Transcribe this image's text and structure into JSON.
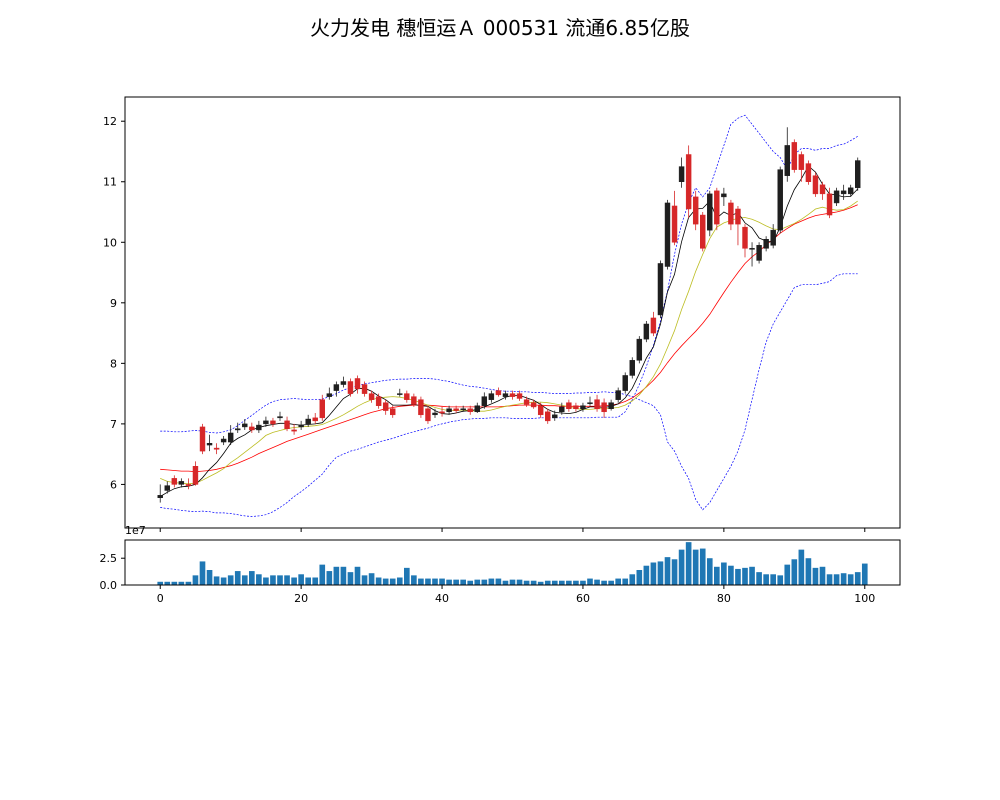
{
  "chart_data": [
    {
      "type": "candlestick",
      "title": "火力发电  穗恒运Ａ  000531  流通6.85亿股",
      "xlim": [
        -5,
        105
      ],
      "ylim": [
        5.28,
        12.4
      ],
      "yticks": [
        6,
        7,
        8,
        9,
        10,
        11,
        12
      ],
      "grid": false,
      "legend": "none",
      "colors": {
        "up": "#d62728",
        "down": "#1f1f1f",
        "ma5": "#000000",
        "ma10": "#bcbd22",
        "ma20": "#ff0000",
        "boll": "#0000ff"
      },
      "open": [
        5.78,
        5.9,
        6.1,
        6.0,
        6.0,
        6.3,
        6.95,
        6.65,
        6.6,
        6.7,
        6.7,
        6.9,
        6.95,
        6.95,
        6.9,
        7.0,
        7.05,
        7.1,
        7.05,
        6.9,
        6.95,
        7.0,
        7.1,
        7.4,
        7.45,
        7.55,
        7.65,
        7.7,
        7.75,
        7.65,
        7.5,
        7.45,
        7.35,
        7.25,
        7.5,
        7.5,
        7.45,
        7.4,
        7.25,
        7.15,
        7.2,
        7.2,
        7.25,
        7.25,
        7.25,
        7.2,
        7.3,
        7.4,
        7.55,
        7.45,
        7.5,
        7.5,
        7.4,
        7.35,
        7.3,
        7.2,
        7.1,
        7.2,
        7.35,
        7.3,
        7.25,
        7.35,
        7.4,
        7.35,
        7.25,
        7.4,
        7.55,
        7.8,
        8.05,
        8.4,
        8.75,
        8.8,
        9.6,
        10.6,
        11.0,
        11.45,
        10.75,
        10.45,
        10.2,
        10.85,
        10.75,
        10.65,
        10.55,
        10.25,
        9.9,
        9.7,
        9.9,
        9.95,
        10.2,
        11.1,
        11.65,
        11.45,
        11.3,
        11.1,
        10.95,
        10.8,
        10.65,
        10.8,
        10.8,
        10.9
      ],
      "close": [
        5.82,
        5.98,
        6.0,
        6.05,
        5.98,
        6.0,
        6.55,
        6.68,
        6.58,
        6.75,
        6.85,
        6.92,
        7.0,
        6.9,
        6.98,
        7.05,
        7.0,
        7.12,
        6.92,
        6.88,
        6.98,
        7.08,
        7.05,
        7.1,
        7.5,
        7.65,
        7.7,
        7.5,
        7.58,
        7.5,
        7.4,
        7.3,
        7.22,
        7.15,
        7.5,
        7.4,
        7.32,
        7.15,
        7.05,
        7.18,
        7.18,
        7.25,
        7.22,
        7.25,
        7.2,
        7.3,
        7.45,
        7.5,
        7.48,
        7.5,
        7.45,
        7.42,
        7.32,
        7.28,
        7.15,
        7.05,
        7.15,
        7.28,
        7.25,
        7.25,
        7.3,
        7.35,
        7.25,
        7.2,
        7.35,
        7.55,
        7.8,
        8.05,
        8.4,
        8.65,
        8.5,
        9.65,
        10.65,
        10.0,
        11.25,
        10.55,
        10.3,
        9.9,
        10.8,
        10.3,
        10.8,
        10.3,
        10.3,
        9.9,
        9.9,
        9.95,
        10.05,
        10.2,
        11.2,
        11.6,
        11.2,
        11.2,
        11.0,
        10.8,
        10.8,
        10.45,
        10.85,
        10.85,
        10.9,
        11.35
      ],
      "high": [
        6.0,
        6.05,
        6.15,
        6.1,
        6.1,
        6.38,
        7.0,
        6.82,
        6.68,
        6.8,
        6.98,
        7.02,
        7.08,
        7.02,
        7.05,
        7.12,
        7.1,
        7.2,
        7.12,
        7.0,
        7.05,
        7.15,
        7.18,
        7.48,
        7.6,
        7.7,
        7.78,
        7.75,
        7.8,
        7.7,
        7.55,
        7.5,
        7.4,
        7.3,
        7.58,
        7.55,
        7.5,
        7.45,
        7.3,
        7.25,
        7.28,
        7.3,
        7.3,
        7.3,
        7.3,
        7.35,
        7.52,
        7.55,
        7.6,
        7.55,
        7.55,
        7.55,
        7.45,
        7.4,
        7.35,
        7.25,
        7.22,
        7.35,
        7.4,
        7.35,
        7.35,
        7.45,
        7.48,
        7.42,
        7.4,
        7.6,
        7.85,
        8.1,
        8.45,
        8.7,
        8.85,
        9.7,
        10.7,
        10.85,
        11.4,
        11.6,
        10.85,
        10.5,
        10.85,
        10.9,
        10.9,
        10.7,
        10.6,
        10.3,
        10.0,
        10.0,
        10.1,
        10.3,
        11.25,
        11.9,
        11.7,
        11.5,
        11.35,
        11.15,
        11.0,
        10.9,
        10.9,
        10.95,
        10.95,
        11.4
      ],
      "low": [
        5.7,
        5.85,
        5.95,
        5.95,
        5.92,
        5.98,
        6.5,
        6.55,
        6.5,
        6.65,
        6.65,
        6.85,
        6.9,
        6.85,
        6.85,
        6.95,
        6.95,
        7.05,
        6.88,
        6.82,
        6.9,
        6.95,
        7.0,
        7.05,
        7.4,
        7.45,
        7.6,
        7.45,
        7.5,
        7.45,
        7.35,
        7.25,
        7.15,
        7.1,
        7.45,
        7.35,
        7.28,
        7.1,
        7.0,
        7.1,
        7.12,
        7.15,
        7.18,
        7.2,
        7.15,
        7.18,
        7.25,
        7.35,
        7.45,
        7.4,
        7.4,
        7.38,
        7.28,
        7.25,
        7.1,
        7.0,
        7.05,
        7.15,
        7.2,
        7.2,
        7.2,
        7.3,
        7.2,
        7.1,
        7.22,
        7.35,
        7.5,
        7.75,
        8.0,
        8.35,
        8.45,
        8.75,
        9.55,
        9.95,
        10.9,
        10.4,
        10.2,
        9.85,
        10.1,
        10.2,
        10.6,
        10.2,
        9.95,
        9.75,
        9.6,
        9.65,
        9.85,
        9.9,
        10.15,
        11.0,
        11.15,
        11.0,
        10.95,
        10.75,
        10.7,
        10.4,
        10.6,
        10.7,
        10.75,
        10.85
      ],
      "ma5": [
        5.8,
        5.87,
        5.93,
        5.96,
        5.97,
        6.0,
        6.11,
        6.25,
        6.36,
        6.51,
        6.68,
        6.76,
        6.82,
        6.9,
        6.94,
        6.97,
        6.99,
        7.01,
        7.01,
        6.99,
        6.98,
        6.99,
        7.0,
        7.02,
        7.14,
        7.28,
        7.42,
        7.49,
        7.58,
        7.59,
        7.54,
        7.46,
        7.4,
        7.31,
        7.31,
        7.31,
        7.32,
        7.3,
        7.29,
        7.22,
        7.17,
        7.16,
        7.18,
        7.21,
        7.22,
        7.24,
        7.28,
        7.33,
        7.38,
        7.44,
        7.47,
        7.47,
        7.43,
        7.39,
        7.32,
        7.24,
        7.19,
        7.18,
        7.17,
        7.19,
        7.24,
        7.28,
        7.28,
        7.27,
        7.29,
        7.33,
        7.43,
        7.59,
        7.83,
        8.09,
        8.27,
        8.65,
        9.18,
        9.47,
        10.01,
        10.41,
        10.55,
        10.56,
        10.68,
        10.4,
        10.5,
        10.44,
        10.49,
        10.32,
        10.24,
        10.07,
        10.02,
        10.0,
        10.25,
        10.6,
        10.87,
        11.05,
        11.26,
        11.16,
        10.96,
        10.8,
        10.78,
        10.75,
        10.76,
        10.88
      ],
      "ma10": [
        6.1,
        6.05,
        6.03,
        6.02,
        6.01,
        6.02,
        6.07,
        6.13,
        6.19,
        6.26,
        6.36,
        6.44,
        6.53,
        6.62,
        6.71,
        6.81,
        6.86,
        6.89,
        6.92,
        6.94,
        6.95,
        6.96,
        6.97,
        6.99,
        7.04,
        7.09,
        7.15,
        7.22,
        7.29,
        7.35,
        7.4,
        7.43,
        7.44,
        7.45,
        7.44,
        7.42,
        7.39,
        7.35,
        7.31,
        7.27,
        7.24,
        7.22,
        7.22,
        7.23,
        7.22,
        7.21,
        7.21,
        7.23,
        7.26,
        7.29,
        7.31,
        7.33,
        7.35,
        7.36,
        7.36,
        7.35,
        7.33,
        7.31,
        7.28,
        7.25,
        7.24,
        7.24,
        7.25,
        7.25,
        7.26,
        7.27,
        7.31,
        7.38,
        7.48,
        7.62,
        7.78,
        7.99,
        8.26,
        8.54,
        8.89,
        9.19,
        9.52,
        9.8,
        10.06,
        10.25,
        10.32,
        10.36,
        10.4,
        10.41,
        10.38,
        10.33,
        10.27,
        10.22,
        10.21,
        10.26,
        10.31,
        10.38,
        10.46,
        10.55,
        10.58,
        10.55,
        10.53,
        10.54,
        10.6,
        10.68
      ],
      "ma20": [
        6.25,
        6.24,
        6.23,
        6.22,
        6.22,
        6.21,
        6.22,
        6.23,
        6.25,
        6.28,
        6.31,
        6.35,
        6.4,
        6.45,
        6.51,
        6.56,
        6.61,
        6.66,
        6.71,
        6.75,
        6.79,
        6.83,
        6.87,
        6.91,
        6.95,
        6.99,
        7.03,
        7.07,
        7.11,
        7.15,
        7.19,
        7.22,
        7.25,
        7.27,
        7.29,
        7.3,
        7.31,
        7.31,
        7.31,
        7.3,
        7.29,
        7.28,
        7.28,
        7.28,
        7.28,
        7.28,
        7.28,
        7.28,
        7.28,
        7.29,
        7.3,
        7.31,
        7.31,
        7.31,
        7.31,
        7.3,
        7.3,
        7.29,
        7.29,
        7.29,
        7.29,
        7.29,
        7.29,
        7.3,
        7.31,
        7.33,
        7.37,
        7.43,
        7.51,
        7.61,
        7.72,
        7.85,
        8.01,
        8.16,
        8.29,
        8.41,
        8.53,
        8.66,
        8.81,
        8.99,
        9.17,
        9.34,
        9.5,
        9.65,
        9.76,
        9.85,
        9.96,
        10.05,
        10.15,
        10.23,
        10.3,
        10.35,
        10.4,
        10.44,
        10.46,
        10.48,
        10.5,
        10.53,
        10.57,
        10.62
      ],
      "boll_upper": [
        6.88,
        6.88,
        6.87,
        6.87,
        6.88,
        6.89,
        6.88,
        6.86,
        6.85,
        6.87,
        6.9,
        6.97,
        7.06,
        7.14,
        7.23,
        7.31,
        7.37,
        7.4,
        7.41,
        7.42,
        7.41,
        7.4,
        7.4,
        7.41,
        7.45,
        7.5,
        7.56,
        7.6,
        7.63,
        7.66,
        7.68,
        7.7,
        7.72,
        7.73,
        7.74,
        7.74,
        7.75,
        7.75,
        7.75,
        7.74,
        7.72,
        7.7,
        7.67,
        7.64,
        7.62,
        7.61,
        7.59,
        7.57,
        7.55,
        7.54,
        7.54,
        7.53,
        7.53,
        7.52,
        7.52,
        7.51,
        7.5,
        7.5,
        7.5,
        7.51,
        7.51,
        7.52,
        7.52,
        7.53,
        7.52,
        7.52,
        7.48,
        7.45,
        7.4,
        7.35,
        7.3,
        7.15,
        6.7,
        6.55,
        6.3,
        6.1,
        5.75,
        5.58,
        5.7,
        5.9,
        6.1,
        6.3,
        6.55,
        6.9,
        7.4,
        7.9,
        8.35,
        8.65,
        8.85,
        9.05,
        9.25,
        9.3,
        9.3,
        9.3,
        9.32,
        9.35,
        9.45,
        9.48,
        9.48,
        9.48
      ],
      "boll_lower": [
        5.62,
        5.6,
        5.59,
        5.57,
        5.56,
        5.55,
        5.56,
        5.55,
        5.53,
        5.53,
        5.52,
        5.5,
        5.48,
        5.47,
        5.48,
        5.5,
        5.55,
        5.62,
        5.7,
        5.8,
        5.88,
        5.97,
        6.07,
        6.17,
        6.32,
        6.45,
        6.5,
        6.55,
        6.58,
        6.62,
        6.66,
        6.7,
        6.73,
        6.76,
        6.8,
        6.84,
        6.87,
        6.9,
        6.93,
        6.97,
        7.0,
        7.03,
        7.05,
        7.07,
        7.08,
        7.09,
        7.09,
        7.1,
        7.1,
        7.1,
        7.09,
        7.09,
        7.09,
        7.09,
        7.1,
        7.1,
        7.1,
        7.1,
        7.1,
        7.1,
        7.1,
        7.1,
        7.11,
        7.11,
        7.11,
        7.11,
        7.2,
        7.4,
        7.65,
        7.95,
        8.3,
        8.7,
        9.2,
        9.8,
        10.3,
        10.65,
        10.9,
        10.75,
        10.9,
        11.25,
        11.6,
        11.95,
        12.05,
        12.1,
        11.95,
        11.8,
        11.65,
        11.5,
        11.4,
        11.2,
        11.45,
        11.55,
        11.55,
        11.52,
        11.55,
        11.55,
        11.6,
        11.62,
        11.68,
        11.75
      ]
    },
    {
      "type": "bar",
      "xlim": [
        -5,
        105
      ],
      "ylim": [
        0,
        4.2
      ],
      "yticks": [
        0.0,
        2.5
      ],
      "xticks": [
        0,
        20,
        40,
        60,
        80,
        100
      ],
      "offset_label": "1e7",
      "color": "#1f77b4",
      "values": [
        0.3,
        0.3,
        0.3,
        0.3,
        0.3,
        0.9,
        2.2,
        1.4,
        0.8,
        0.7,
        0.9,
        1.3,
        0.9,
        1.3,
        1.0,
        0.7,
        0.9,
        0.9,
        0.9,
        0.7,
        1.0,
        0.7,
        0.7,
        1.9,
        1.3,
        1.7,
        1.7,
        1.2,
        1.7,
        0.9,
        1.1,
        0.7,
        0.6,
        0.6,
        0.7,
        1.6,
        0.9,
        0.6,
        0.6,
        0.6,
        0.6,
        0.5,
        0.5,
        0.5,
        0.4,
        0.5,
        0.5,
        0.6,
        0.6,
        0.4,
        0.5,
        0.5,
        0.4,
        0.4,
        0.3,
        0.4,
        0.4,
        0.4,
        0.4,
        0.4,
        0.4,
        0.6,
        0.5,
        0.4,
        0.4,
        0.6,
        0.6,
        1.0,
        1.4,
        1.8,
        2.1,
        2.2,
        2.6,
        2.4,
        3.3,
        4.0,
        3.3,
        3.4,
        2.5,
        1.7,
        2.1,
        1.8,
        1.5,
        1.6,
        1.7,
        1.2,
        1.0,
        1.0,
        0.9,
        1.9,
        2.4,
        3.3,
        2.5,
        1.6,
        1.7,
        1.0,
        1.0,
        1.1,
        1.0,
        1.2,
        2.0
      ]
    }
  ]
}
